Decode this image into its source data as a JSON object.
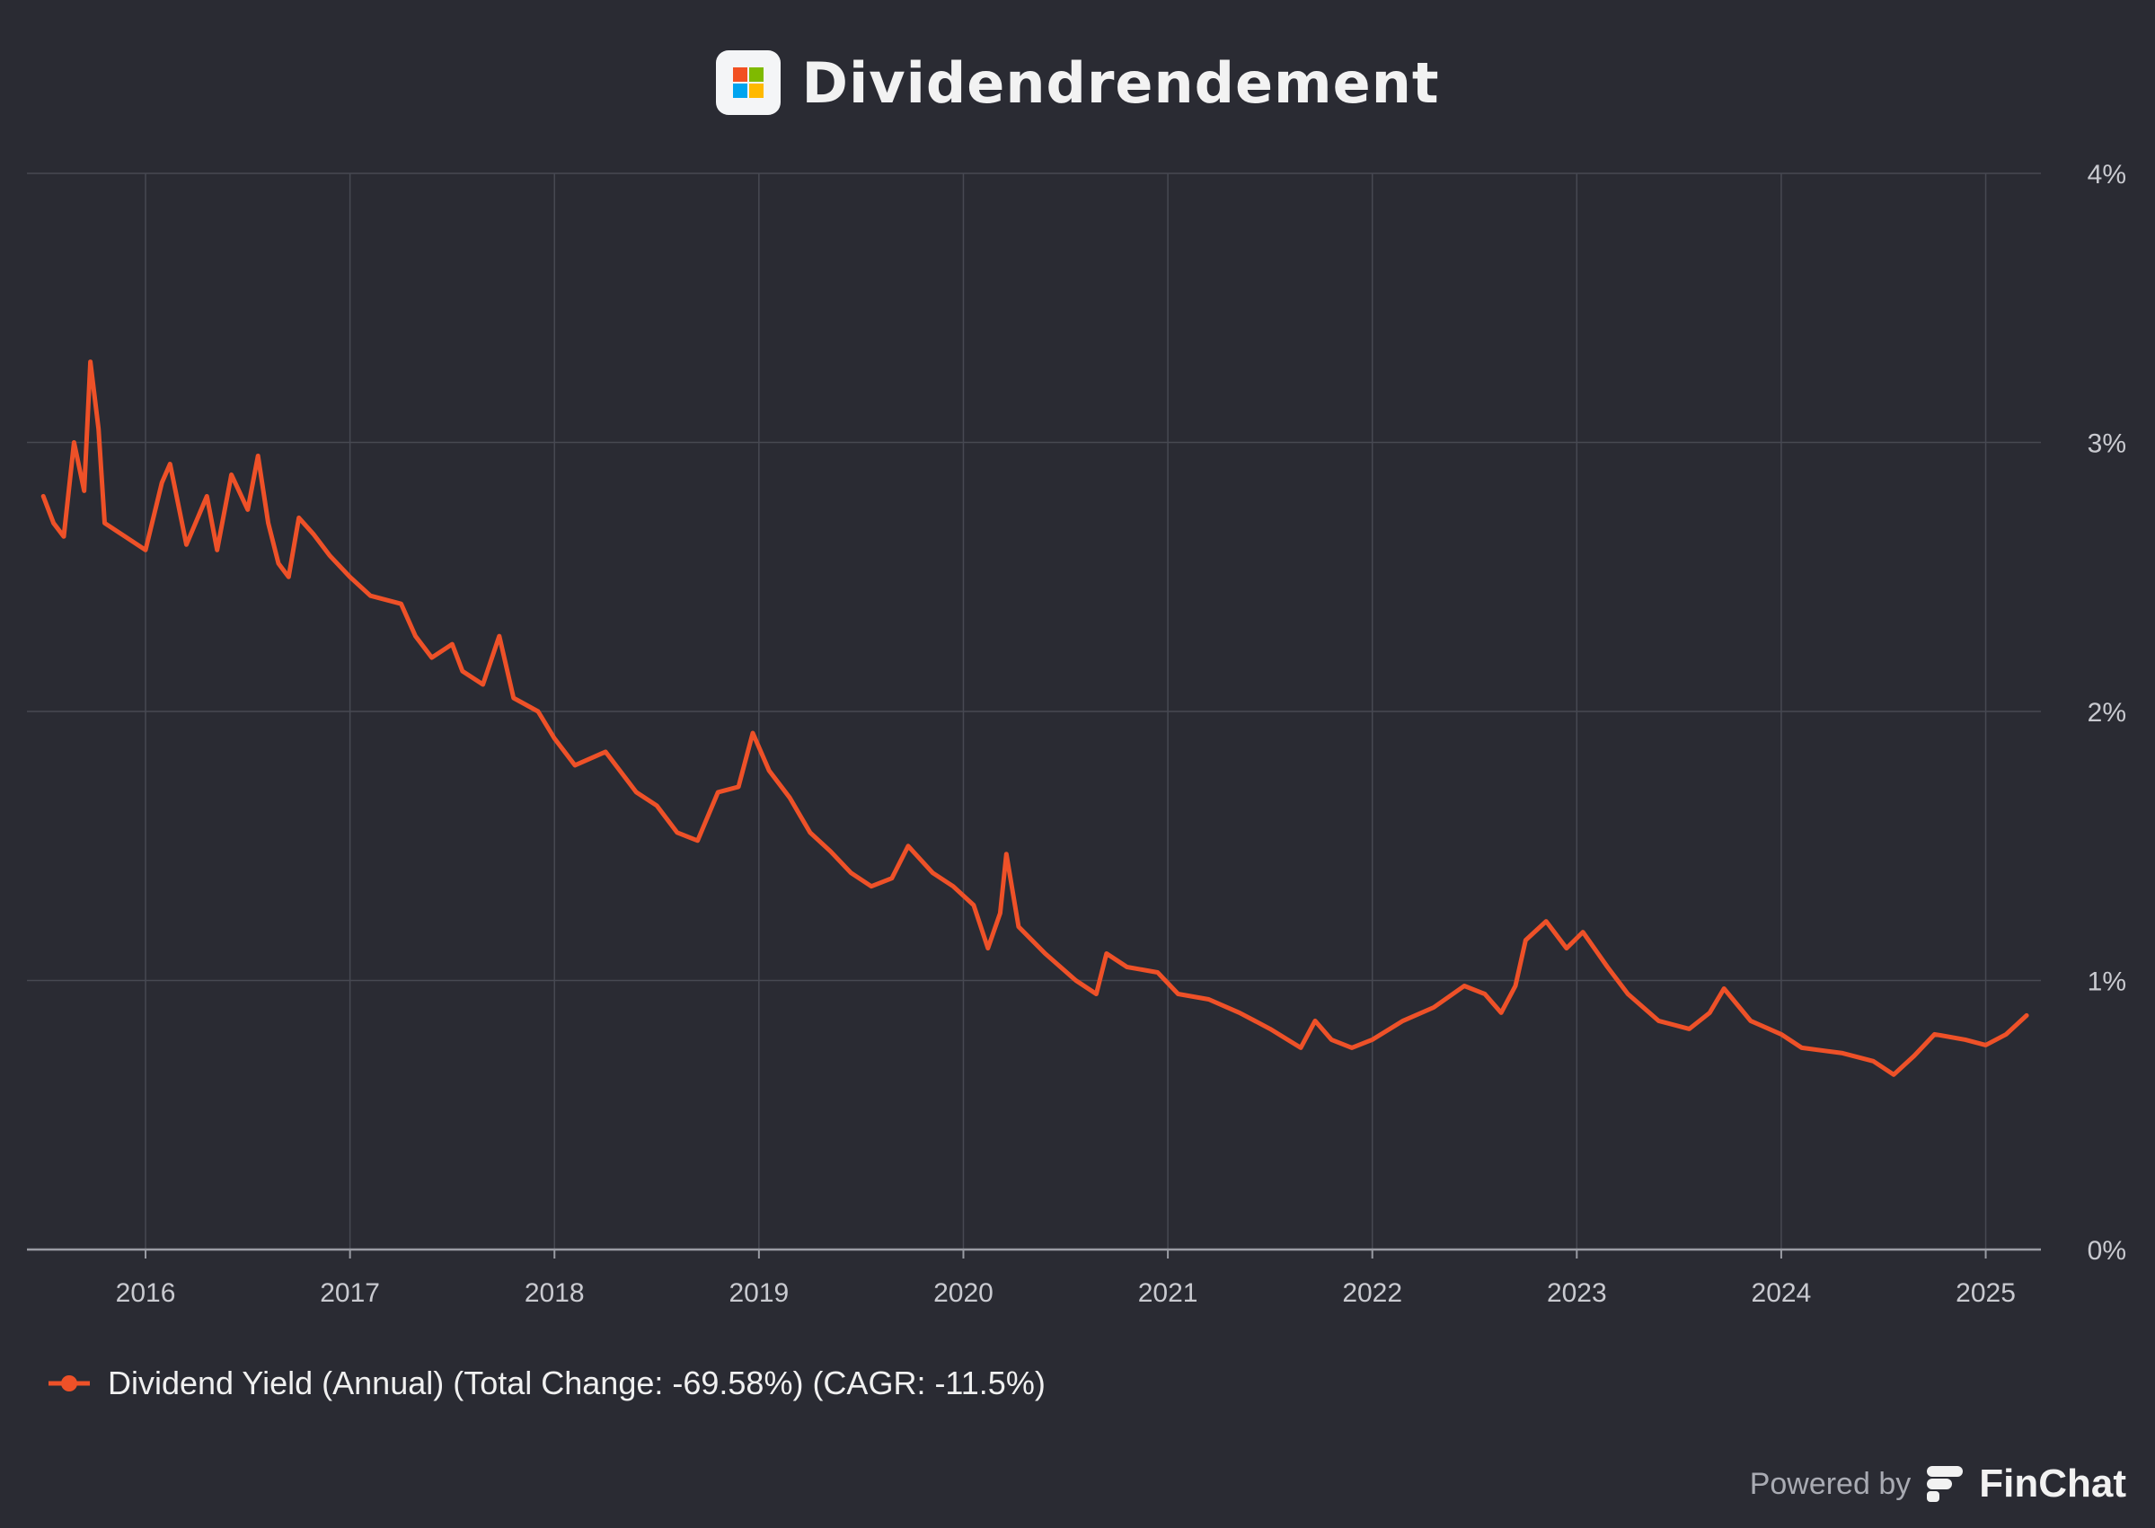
{
  "header": {
    "title": "Dividendrendement",
    "logo_icon": "microsoft-logo-icon",
    "logo_colors": [
      "#f25022",
      "#7fba00",
      "#00a4ef",
      "#ffb900"
    ]
  },
  "legend": {
    "label": "Dividend Yield (Annual) (Total Change: -69.58%) (CAGR: -11.5%)",
    "marker_icon": "line-dot-marker-icon"
  },
  "footer": {
    "powered_by": "Powered by",
    "brand": "FinChat",
    "brand_icon": "finchat-logo-icon"
  },
  "colors": {
    "background": "#2a2b33",
    "series": "#ee5128",
    "grid": "#474952",
    "text": "#c9cad0"
  },
  "chart_data": {
    "type": "line",
    "title": "Dividendrendement",
    "xlabel": "",
    "ylabel": "",
    "y_axis_side": "right",
    "ylim": [
      0,
      4
    ],
    "y_ticks": [
      0,
      1,
      2,
      3,
      4
    ],
    "y_tick_labels": [
      "0%",
      "1%",
      "2%",
      "3%",
      "4%"
    ],
    "x_range": [
      2015.42,
      2025.27
    ],
    "x_ticks": [
      2016,
      2017,
      2018,
      2019,
      2020,
      2021,
      2022,
      2023,
      2024,
      2025
    ],
    "x_tick_labels": [
      "2016",
      "2017",
      "2018",
      "2019",
      "2020",
      "2021",
      "2022",
      "2023",
      "2024",
      "2025"
    ],
    "grid": true,
    "legend_position": "bottom-left",
    "series": [
      {
        "name": "Dividend Yield (Annual) (Total Change: -69.58%) (CAGR: -11.5%)",
        "color": "#ee5128",
        "points": [
          [
            2015.5,
            2.8
          ],
          [
            2015.55,
            2.7
          ],
          [
            2015.6,
            2.65
          ],
          [
            2015.65,
            3.0
          ],
          [
            2015.7,
            2.82
          ],
          [
            2015.73,
            3.3
          ],
          [
            2015.77,
            3.05
          ],
          [
            2015.8,
            2.7
          ],
          [
            2015.9,
            2.65
          ],
          [
            2016.0,
            2.6
          ],
          [
            2016.08,
            2.85
          ],
          [
            2016.12,
            2.92
          ],
          [
            2016.2,
            2.62
          ],
          [
            2016.3,
            2.8
          ],
          [
            2016.35,
            2.6
          ],
          [
            2016.42,
            2.88
          ],
          [
            2016.5,
            2.75
          ],
          [
            2016.55,
            2.95
          ],
          [
            2016.6,
            2.7
          ],
          [
            2016.65,
            2.55
          ],
          [
            2016.7,
            2.5
          ],
          [
            2016.75,
            2.72
          ],
          [
            2016.82,
            2.66
          ],
          [
            2016.9,
            2.58
          ],
          [
            2017.0,
            2.5
          ],
          [
            2017.1,
            2.43
          ],
          [
            2017.25,
            2.4
          ],
          [
            2017.32,
            2.28
          ],
          [
            2017.4,
            2.2
          ],
          [
            2017.5,
            2.25
          ],
          [
            2017.55,
            2.15
          ],
          [
            2017.65,
            2.1
          ],
          [
            2017.73,
            2.28
          ],
          [
            2017.8,
            2.05
          ],
          [
            2017.92,
            2.0
          ],
          [
            2018.0,
            1.9
          ],
          [
            2018.1,
            1.8
          ],
          [
            2018.25,
            1.85
          ],
          [
            2018.4,
            1.7
          ],
          [
            2018.5,
            1.65
          ],
          [
            2018.6,
            1.55
          ],
          [
            2018.7,
            1.52
          ],
          [
            2018.8,
            1.7
          ],
          [
            2018.9,
            1.72
          ],
          [
            2018.97,
            1.92
          ],
          [
            2019.05,
            1.78
          ],
          [
            2019.15,
            1.68
          ],
          [
            2019.25,
            1.55
          ],
          [
            2019.35,
            1.48
          ],
          [
            2019.45,
            1.4
          ],
          [
            2019.55,
            1.35
          ],
          [
            2019.65,
            1.38
          ],
          [
            2019.73,
            1.5
          ],
          [
            2019.85,
            1.4
          ],
          [
            2019.95,
            1.35
          ],
          [
            2020.05,
            1.28
          ],
          [
            2020.12,
            1.12
          ],
          [
            2020.18,
            1.25
          ],
          [
            2020.21,
            1.47
          ],
          [
            2020.27,
            1.2
          ],
          [
            2020.4,
            1.1
          ],
          [
            2020.55,
            1.0
          ],
          [
            2020.65,
            0.95
          ],
          [
            2020.7,
            1.1
          ],
          [
            2020.8,
            1.05
          ],
          [
            2020.95,
            1.03
          ],
          [
            2021.05,
            0.95
          ],
          [
            2021.2,
            0.93
          ],
          [
            2021.35,
            0.88
          ],
          [
            2021.5,
            0.82
          ],
          [
            2021.65,
            0.75
          ],
          [
            2021.72,
            0.85
          ],
          [
            2021.8,
            0.78
          ],
          [
            2021.9,
            0.75
          ],
          [
            2022.0,
            0.78
          ],
          [
            2022.15,
            0.85
          ],
          [
            2022.3,
            0.9
          ],
          [
            2022.45,
            0.98
          ],
          [
            2022.55,
            0.95
          ],
          [
            2022.63,
            0.88
          ],
          [
            2022.7,
            0.98
          ],
          [
            2022.75,
            1.15
          ],
          [
            2022.85,
            1.22
          ],
          [
            2022.95,
            1.12
          ],
          [
            2023.03,
            1.18
          ],
          [
            2023.15,
            1.05
          ],
          [
            2023.25,
            0.95
          ],
          [
            2023.4,
            0.85
          ],
          [
            2023.55,
            0.82
          ],
          [
            2023.65,
            0.88
          ],
          [
            2023.72,
            0.97
          ],
          [
            2023.85,
            0.85
          ],
          [
            2024.0,
            0.8
          ],
          [
            2024.1,
            0.75
          ],
          [
            2024.3,
            0.73
          ],
          [
            2024.45,
            0.7
          ],
          [
            2024.55,
            0.65
          ],
          [
            2024.65,
            0.72
          ],
          [
            2024.75,
            0.8
          ],
          [
            2024.9,
            0.78
          ],
          [
            2025.0,
            0.76
          ],
          [
            2025.1,
            0.8
          ],
          [
            2025.2,
            0.87
          ]
        ]
      }
    ]
  }
}
